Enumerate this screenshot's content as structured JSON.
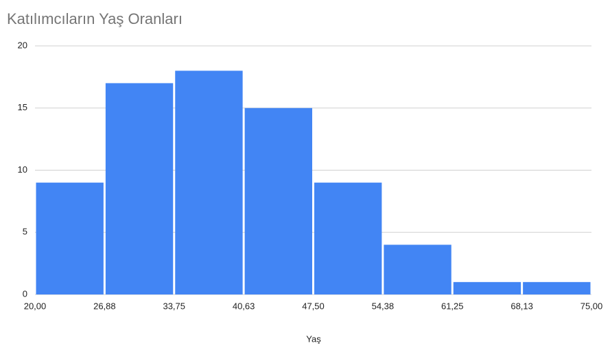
{
  "chart_data": {
    "type": "histogram",
    "title": "Katılımcıların Yaş Oranları",
    "x_label": "Yaş",
    "bins": [
      20,
      26.875,
      33.75,
      40.625,
      47.5,
      54.375,
      61.25,
      68.125,
      75
    ],
    "values": [
      9,
      17,
      18,
      15,
      9,
      4,
      1,
      1
    ],
    "color": "#4285f4",
    "xlim": [
      20,
      75
    ],
    "xticks": [
      {
        "value": 20,
        "label": "20,00"
      },
      {
        "value": 26.875,
        "label": "26,88"
      },
      {
        "value": 33.75,
        "label": "33,75"
      },
      {
        "value": 40.625,
        "label": "40,63"
      },
      {
        "value": 47.5,
        "label": "47,50"
      },
      {
        "value": 54.375,
        "label": "54,38"
      },
      {
        "value": 61.25,
        "label": "61,25"
      },
      {
        "value": 68.125,
        "label": "68,13"
      },
      {
        "value": 75,
        "label": "75,00"
      }
    ],
    "ylim": [
      0,
      20
    ],
    "yticks": [
      0,
      5,
      10,
      15,
      20
    ],
    "grid": true
  }
}
